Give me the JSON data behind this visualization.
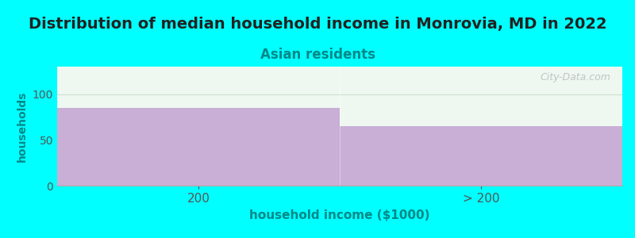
{
  "title": "Distribution of median household income in Monrovia, MD in 2022",
  "subtitle": "Asian residents",
  "xlabel": "household income ($1000)",
  "ylabel": "households",
  "categories": [
    "200",
    "> 200"
  ],
  "values": [
    85,
    65
  ],
  "bar_color": "#c9aed6",
  "background_color": "#00ffff",
  "plot_bg_color": "#eef8f0",
  "title_fontsize": 14,
  "title_color": "#222222",
  "subtitle_fontsize": 12,
  "subtitle_color": "#008888",
  "axis_label_color": "#008888",
  "tick_color": "#555555",
  "ylim": [
    0,
    130
  ],
  "yticks": [
    0,
    50,
    100
  ],
  "watermark": "City-Data.com",
  "grid_color": "#ccddcc"
}
